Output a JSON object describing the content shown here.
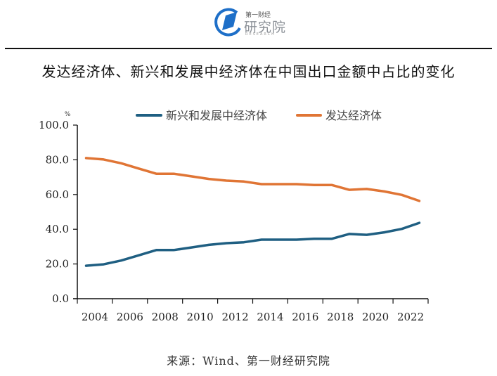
{
  "header": {
    "logo": {
      "icon": "diamond-in-circle-logo-icon",
      "top_text": "第一财经",
      "main_text": "研究院",
      "sub_text": "RESEARCH",
      "colors": {
        "blue": "#1e6fc8",
        "gray": "#8a8f96"
      }
    }
  },
  "title": "发达经济体、新兴和发展中经济体在中国出口金额中占比的变化",
  "source": "来源：Wind、第一财经研究院",
  "chart_data": {
    "type": "line",
    "title": "发达经济体、新兴和发展中经济体在中国出口金额中占比的变化",
    "xlabel": "",
    "ylabel": "%",
    "ylim": [
      0,
      100
    ],
    "yticks": [
      0,
      20,
      40,
      60,
      80,
      100
    ],
    "ytick_labels": [
      "0.0",
      "20.0",
      "40.0",
      "60.0",
      "80.0",
      "100.0"
    ],
    "x": [
      2004,
      2005,
      2006,
      2007,
      2008,
      2009,
      2010,
      2011,
      2012,
      2013,
      2014,
      2015,
      2016,
      2017,
      2018,
      2019,
      2020,
      2021,
      2022,
      2023
    ],
    "xtick_labels": [
      "2004",
      "2006",
      "2008",
      "2010",
      "2012",
      "2014",
      "2016",
      "2018",
      "2020",
      "2022"
    ],
    "grid": false,
    "legend_position": "top-center",
    "series": [
      {
        "name": "新兴和发展中经济体",
        "color": "#1f5f82",
        "values": [
          19.0,
          19.8,
          22.0,
          25.0,
          28.0,
          28.0,
          29.5,
          31.0,
          32.0,
          32.5,
          34.0,
          34.0,
          34.0,
          34.5,
          34.5,
          37.3,
          36.8,
          38.2,
          40.2,
          43.7
        ]
      },
      {
        "name": "发达经济体",
        "color": "#e07535",
        "values": [
          81.0,
          80.2,
          78.0,
          75.0,
          72.0,
          72.0,
          70.5,
          69.0,
          68.0,
          67.5,
          66.0,
          66.0,
          66.0,
          65.5,
          65.5,
          62.7,
          63.2,
          61.8,
          59.8,
          56.3
        ]
      }
    ]
  }
}
